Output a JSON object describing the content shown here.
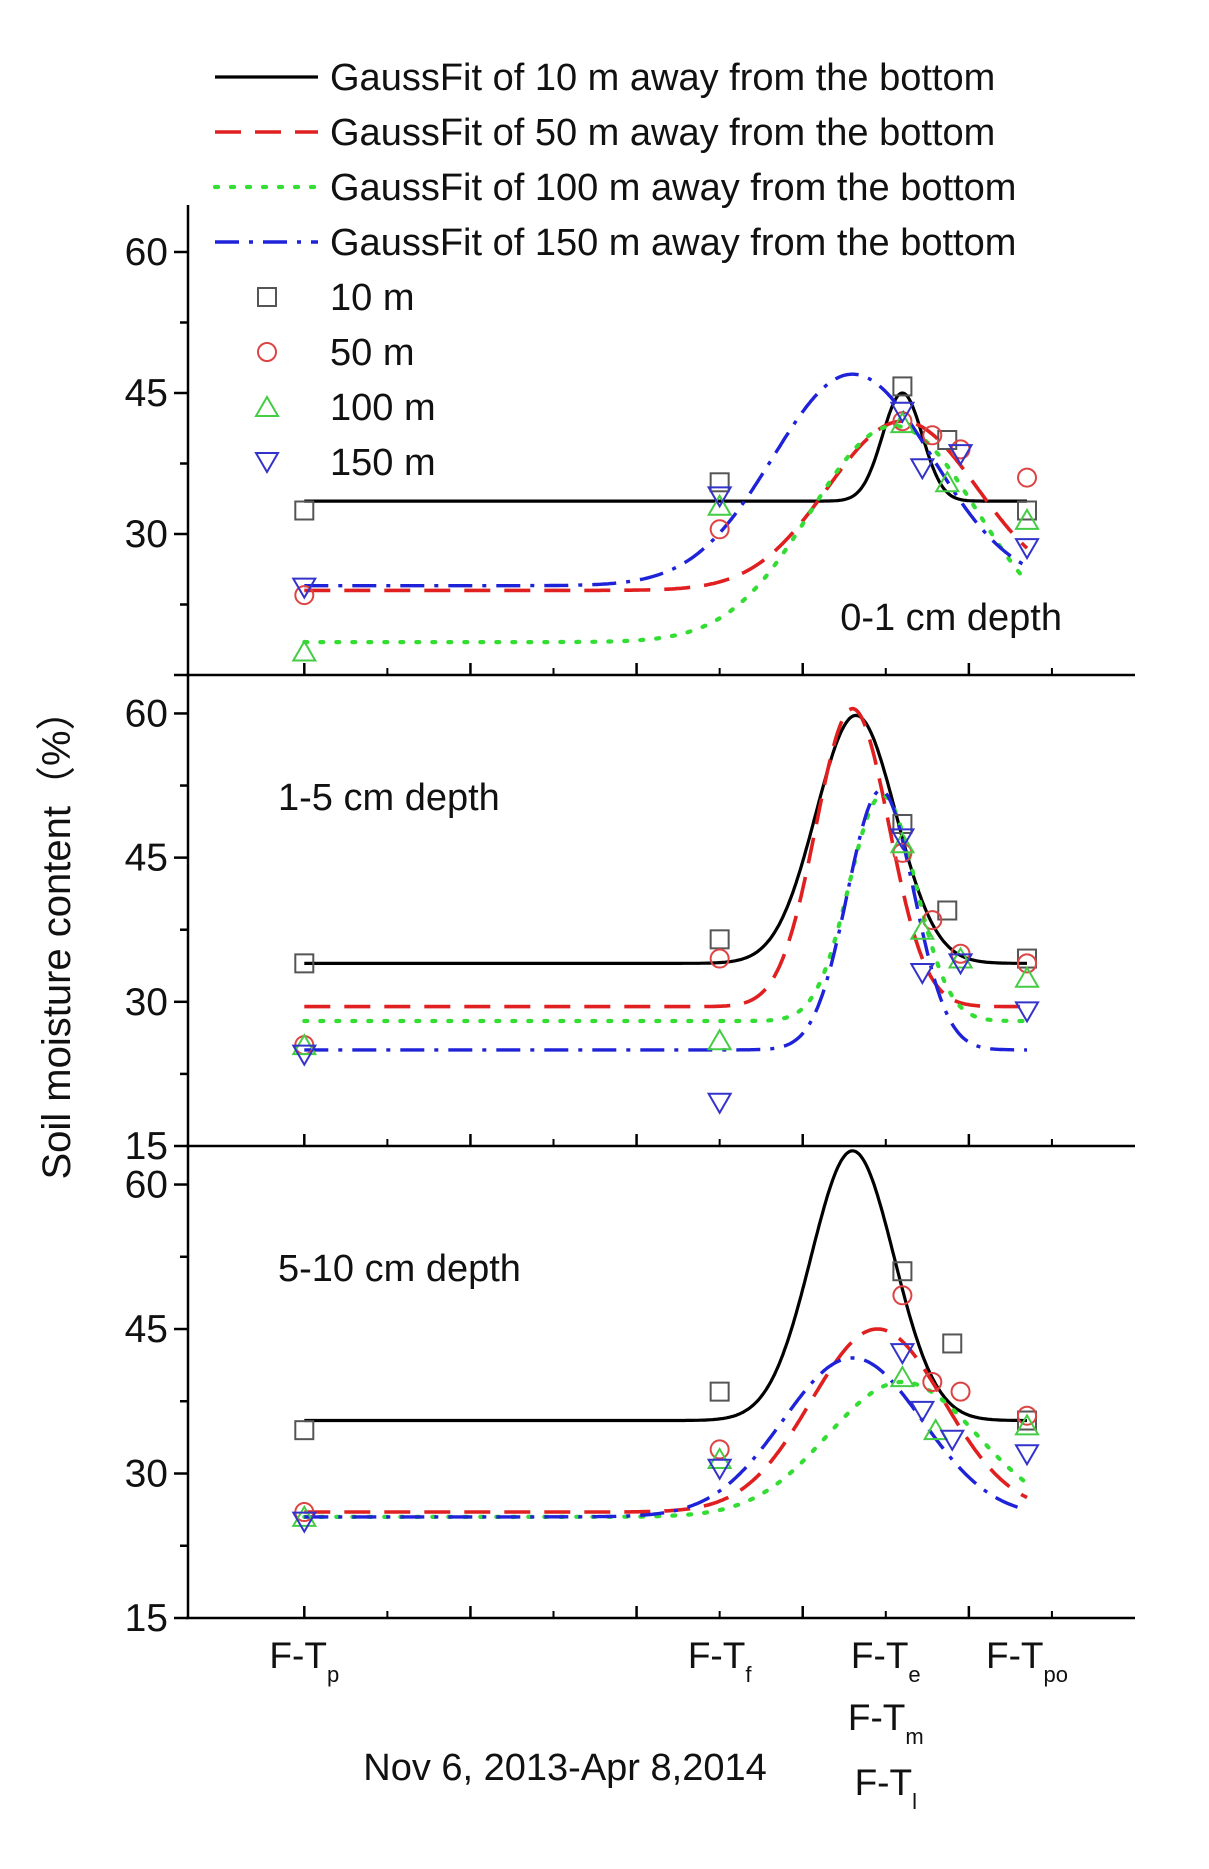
{
  "chart_data": {
    "type": "scatter",
    "title": "",
    "ylabel": "Soil moisture content（%）",
    "xlabel": "Nov 6, 2013-Apr 8,2014",
    "x_categories": [
      {
        "id": "p",
        "main": "F-T",
        "sub": "p",
        "x": 0
      },
      {
        "id": "f",
        "main": "F-T",
        "sub": "f",
        "x": 2.5
      },
      {
        "id": "e",
        "main": "F-T",
        "sub": "e",
        "x": 3.5
      },
      {
        "id": "po",
        "main": "F-T",
        "sub": "po",
        "x": 4.35
      },
      {
        "id": "m",
        "main": "F-T",
        "sub": "m",
        "x": 3.5
      },
      {
        "id": "l",
        "main": "F-T",
        "sub": "l",
        "x": 3.5
      }
    ],
    "xlim": [
      -0.7,
      5.0
    ],
    "legend": {
      "position": "top",
      "lines": [
        {
          "label": "GaussFit of 10 m away from the bottom",
          "color": "#000000",
          "dash": "solid"
        },
        {
          "label": "GaussFit of 50 m away from the bottom",
          "color": "#e02020",
          "dash": "dashed"
        },
        {
          "label": "GaussFit of 100 m away from the bottom",
          "color": "#33dd33",
          "dash": "dotted"
        },
        {
          "label": "GaussFit of 150 m away from the bottom",
          "color": "#1e22d8",
          "dash": "dash-dot"
        }
      ],
      "markers": [
        {
          "label": "10 m",
          "shape": "square",
          "color": "#555555"
        },
        {
          "label": "50 m",
          "shape": "circle",
          "color": "#dd4444"
        },
        {
          "label": "100 m",
          "shape": "triangle-up",
          "color": "#44cc44"
        },
        {
          "label": "150 m",
          "shape": "triangle-down",
          "color": "#3333cc"
        }
      ]
    },
    "panels": [
      {
        "id": "top",
        "label": "0-1 cm depth",
        "label_position": "bottom-right",
        "ylim": [
          15,
          65
        ],
        "yticks": [
          30,
          45,
          60
        ],
        "show_yticklabels": [
          "30",
          "45",
          "60"
        ],
        "points": {
          "10 m": [
            [
              0,
              32.5
            ],
            [
              2.5,
              35.5
            ],
            [
              3.6,
              45.7
            ],
            [
              3.87,
              40.0
            ],
            [
              4.35,
              32.5
            ]
          ],
          "50 m": [
            [
              0,
              23.5
            ],
            [
              2.5,
              30.5
            ],
            [
              3.6,
              42.0
            ],
            [
              3.78,
              40.5
            ],
            [
              3.95,
              39.0
            ],
            [
              4.35,
              36.0
            ]
          ],
          "100 m": [
            [
              0,
              17.5
            ],
            [
              2.5,
              33.0
            ],
            [
              3.6,
              41.8
            ],
            [
              3.87,
              35.5
            ],
            [
              4.35,
              31.5
            ]
          ],
          "150 m": [
            [
              0,
              24.3
            ],
            [
              2.5,
              34.0
            ],
            [
              3.6,
              43.0
            ],
            [
              3.72,
              37.0
            ],
            [
              3.95,
              38.5
            ],
            [
              4.35,
              28.5
            ]
          ]
        },
        "fits": {
          "10 m": {
            "baseline": 33.5,
            "amplitude": 11.5,
            "center": 3.6,
            "sigma": 0.12
          },
          "50 m": {
            "baseline": 24.0,
            "amplitude": 18.0,
            "center": 3.6,
            "sigma": 0.45
          },
          "100 m": {
            "baseline": 18.5,
            "amplitude": 23.0,
            "center": 3.55,
            "sigma": 0.5
          },
          "150 m": {
            "baseline": 24.5,
            "amplitude": 22.5,
            "center": 3.3,
            "sigma": 0.48
          }
        }
      },
      {
        "id": "middle",
        "label": "1-5 cm depth",
        "label_position": "top-left",
        "ylim": [
          15,
          64
        ],
        "yticks": [
          15,
          30,
          45,
          60
        ],
        "show_yticklabels": [
          "15",
          "30",
          "45",
          "60"
        ],
        "points": {
          "10 m": [
            [
              0,
              34.0
            ],
            [
              2.5,
              36.5
            ],
            [
              3.6,
              48.5
            ],
            [
              3.87,
              39.5
            ],
            [
              4.35,
              34.5
            ]
          ],
          "50 m": [
            [
              0,
              25.5
            ],
            [
              2.5,
              34.5
            ],
            [
              3.6,
              45.5
            ],
            [
              3.78,
              38.5
            ],
            [
              3.95,
              35.0
            ],
            [
              4.35,
              34.0
            ]
          ],
          "100 m": [
            [
              0,
              25.5
            ],
            [
              2.5,
              26.0
            ],
            [
              3.6,
              46.5
            ],
            [
              3.72,
              37.5
            ],
            [
              3.95,
              34.5
            ],
            [
              4.35,
              32.5
            ]
          ],
          "150 m": [
            [
              0,
              24.5
            ],
            [
              2.5,
              19.5
            ],
            [
              3.6,
              47.0
            ],
            [
              3.72,
              33.0
            ],
            [
              3.95,
              34.0
            ],
            [
              4.35,
              29.0
            ]
          ]
        },
        "fits": {
          "10 m": {
            "baseline": 34.0,
            "amplitude": 25.8,
            "center": 3.32,
            "sigma": 0.24
          },
          "50 m": {
            "baseline": 29.5,
            "amplitude": 31.0,
            "center": 3.3,
            "sigma": 0.22
          },
          "100 m": {
            "baseline": 28.0,
            "amplitude": 23.5,
            "center": 3.48,
            "sigma": 0.2
          },
          "150 m": {
            "baseline": 25.0,
            "amplitude": 27.0,
            "center": 3.47,
            "sigma": 0.2
          }
        }
      },
      {
        "id": "bottom",
        "label": "5-10 cm depth",
        "label_position": "top-left",
        "ylim": [
          15,
          64
        ],
        "yticks": [
          15,
          30,
          45,
          60
        ],
        "show_yticklabels": [
          "15",
          "30",
          "45",
          "60"
        ],
        "points": {
          "10 m": [
            [
              0,
              34.5
            ],
            [
              2.5,
              38.5
            ],
            [
              3.6,
              51.0
            ],
            [
              3.9,
              43.5
            ],
            [
              4.35,
              35.5
            ]
          ],
          "50 m": [
            [
              0,
              26.0
            ],
            [
              2.5,
              32.5
            ],
            [
              3.6,
              48.5
            ],
            [
              3.78,
              39.5
            ],
            [
              3.95,
              38.5
            ],
            [
              4.35,
              36.0
            ]
          ],
          "100 m": [
            [
              0,
              25.5
            ],
            [
              2.5,
              31.5
            ],
            [
              3.6,
              40.0
            ],
            [
              3.8,
              34.5
            ],
            [
              4.35,
              35.0
            ]
          ],
          "150 m": [
            [
              0,
              25.0
            ],
            [
              2.5,
              30.5
            ],
            [
              3.6,
              42.5
            ],
            [
              3.72,
              36.5
            ],
            [
              3.9,
              33.5
            ],
            [
              4.35,
              32.0
            ]
          ]
        },
        "fits": {
          "10 m": {
            "baseline": 35.5,
            "amplitude": 28.0,
            "center": 3.3,
            "sigma": 0.25
          },
          "50 m": {
            "baseline": 26.0,
            "amplitude": 19.0,
            "center": 3.45,
            "sigma": 0.4
          },
          "100 m": {
            "baseline": 25.5,
            "amplitude": 14.0,
            "center": 3.6,
            "sigma": 0.45
          },
          "150 m": {
            "baseline": 25.5,
            "amplitude": 16.5,
            "center": 3.3,
            "sigma": 0.42
          }
        }
      }
    ]
  }
}
